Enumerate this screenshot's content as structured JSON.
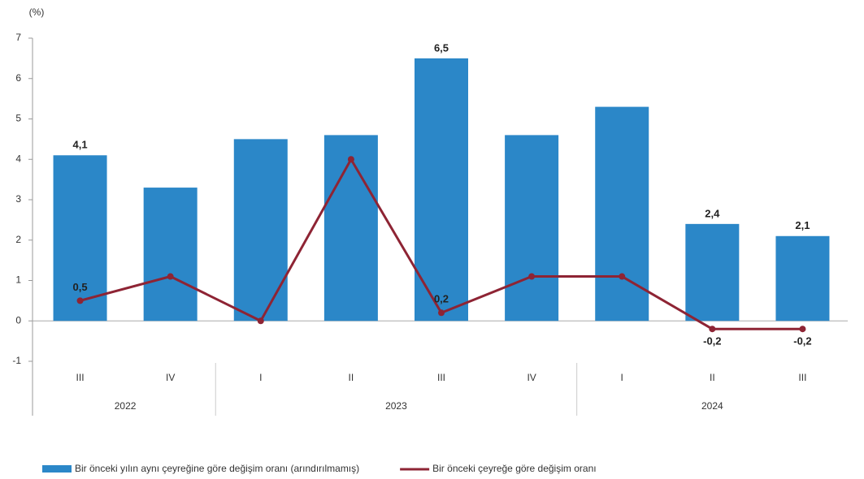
{
  "chart_data": {
    "type": "bar-line",
    "ylabel": "(%)",
    "categories": [
      "III",
      "IV",
      "I",
      "II",
      "III",
      "IV",
      "I",
      "II",
      "III"
    ],
    "groups": [
      {
        "label": "2022",
        "size": 2
      },
      {
        "label": "2023",
        "size": 4
      },
      {
        "label": "2024",
        "size": 3
      }
    ],
    "series": [
      {
        "name": "Bir önceki yılın aynı çeyreğine göre değişim oranı (arındırılmamış)",
        "type": "bar",
        "color": "#2b87c8",
        "values": [
          4.1,
          3.3,
          4.5,
          4.6,
          6.5,
          4.6,
          5.3,
          2.4,
          2.1
        ],
        "value_labels": [
          "4,1",
          null,
          null,
          null,
          "6,5",
          null,
          null,
          "2,4",
          "2,1"
        ]
      },
      {
        "name": "Bir önceki çeyreğe göre değişim oranı",
        "type": "line",
        "color": "#8e2434",
        "values": [
          0.5,
          1.1,
          0.0,
          4.0,
          0.2,
          1.1,
          1.1,
          -0.2,
          -0.2
        ],
        "value_labels": [
          "0,5",
          null,
          null,
          null,
          "0,2",
          null,
          null,
          "-0,2",
          "-0,2"
        ]
      }
    ],
    "ylim": [
      -1,
      7
    ],
    "yticks": [
      -1,
      0,
      1,
      2,
      3,
      4,
      5,
      6,
      7
    ],
    "grid": false,
    "legend": "bottom"
  }
}
